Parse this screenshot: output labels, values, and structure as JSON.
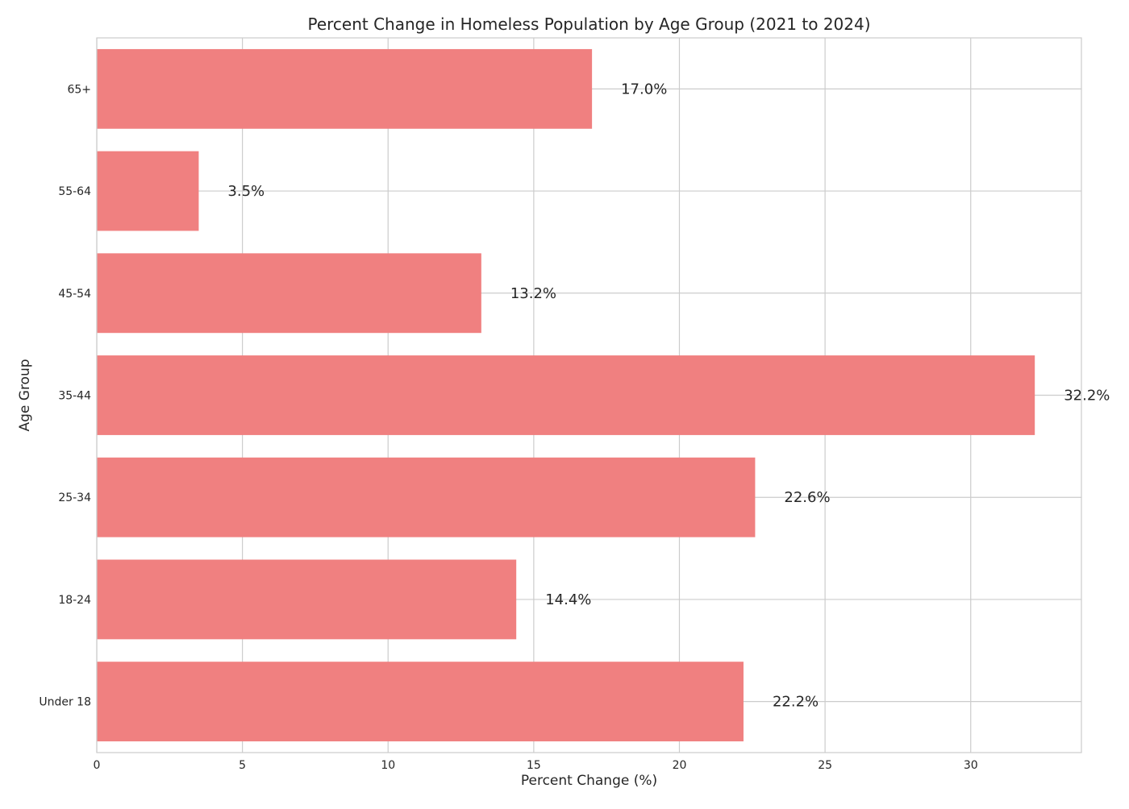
{
  "chart_data": {
    "type": "bar",
    "orientation": "horizontal",
    "title": "Percent Change in Homeless Population by Age Group (2021 to 2024)",
    "xlabel": "Percent Change (%)",
    "ylabel": "Age Group",
    "categories": [
      "Under 18",
      "18-24",
      "25-34",
      "35-44",
      "45-54",
      "55-64",
      "65+"
    ],
    "values": [
      22.2,
      14.4,
      22.6,
      32.2,
      13.2,
      3.5,
      17.0
    ],
    "value_labels": [
      "22.2%",
      "14.4%",
      "22.6%",
      "32.2%",
      "13.2%",
      "3.5%",
      "17.0%"
    ],
    "xlim": [
      0,
      33.8
    ],
    "xticks": [
      0,
      5,
      10,
      15,
      20,
      25,
      30
    ],
    "xtick_labels": [
      "0",
      "5",
      "10",
      "15",
      "20",
      "25",
      "30"
    ],
    "grid": true,
    "bar_color": "#f08080",
    "grid_color": "#cccccc",
    "text_color": "#262626"
  }
}
